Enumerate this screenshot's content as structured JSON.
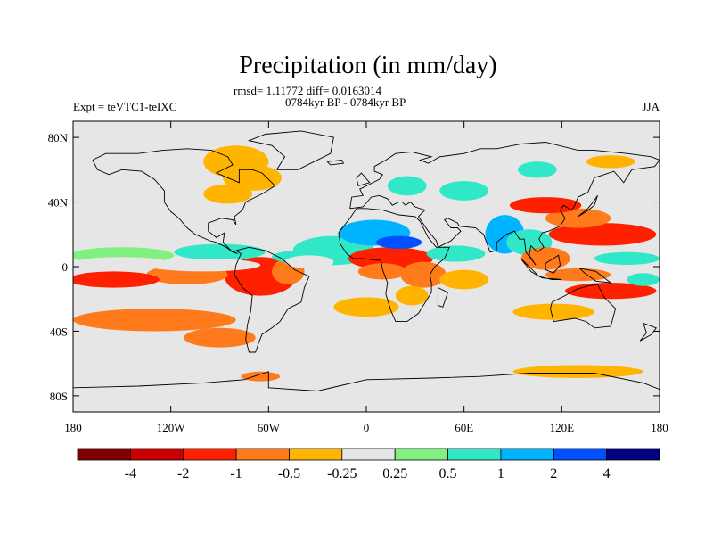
{
  "chart_data": {
    "type": "heatmap",
    "title": "Precipitation (in mm/day)",
    "subtitle_stats": "rmsd= 1.11772 diff= 0.0163014",
    "subtitle_period": "0784kyr BP - 0784kyr BP",
    "left_label": "Expt = teVTC1-teIXC",
    "right_label": "JJA",
    "x_ticks": [
      {
        "value": -180,
        "label": "180"
      },
      {
        "value": -120,
        "label": "120W"
      },
      {
        "value": -60,
        "label": "60W"
      },
      {
        "value": 0,
        "label": "0"
      },
      {
        "value": 60,
        "label": "60E"
      },
      {
        "value": 120,
        "label": "120E"
      },
      {
        "value": 180,
        "label": "180"
      }
    ],
    "y_ticks": [
      {
        "value": 80,
        "label": "80N"
      },
      {
        "value": 40,
        "label": "40N"
      },
      {
        "value": 0,
        "label": "0"
      },
      {
        "value": -40,
        "label": "40S"
      },
      {
        "value": -80,
        "label": "80S"
      }
    ],
    "xlim": [
      -180,
      180
    ],
    "ylim": [
      -90,
      90
    ],
    "colorbar": {
      "colors": [
        "#800000",
        "#c80000",
        "#ff2000",
        "#ff7a1a",
        "#ffb400",
        "#e6e6e6",
        "#80f080",
        "#30e8c8",
        "#00b4ff",
        "#0050ff",
        "#000080"
      ],
      "labels": [
        "-4",
        "-2",
        "-1",
        "-0.5",
        "-0.25",
        "0.25",
        "0.5",
        "1",
        "2",
        "4"
      ]
    },
    "anomaly_regions": [
      {
        "lon": -150,
        "lat": 7,
        "rx": 32,
        "ry": 5,
        "level": 2
      },
      {
        "lon": -90,
        "lat": 9,
        "rx": 28,
        "ry": 5,
        "level": 3
      },
      {
        "lon": -40,
        "lat": 6,
        "rx": 18,
        "ry": 4,
        "level": 3
      },
      {
        "lon": -150,
        "lat": 2,
        "rx": 30,
        "ry": 4,
        "level": 8
      },
      {
        "lon": -100,
        "lat": 1,
        "rx": 35,
        "ry": 4,
        "level": 9
      },
      {
        "lon": -35,
        "lat": 3,
        "rx": 15,
        "ry": 4,
        "level": 8
      },
      {
        "lon": -155,
        "lat": -8,
        "rx": 28,
        "ry": 5,
        "level": -3
      },
      {
        "lon": -110,
        "lat": -5,
        "rx": 25,
        "ry": 6,
        "level": -2
      },
      {
        "lon": -65,
        "lat": -6,
        "rx": 22,
        "ry": 12,
        "level": -3
      },
      {
        "lon": -48,
        "lat": -3,
        "rx": 10,
        "ry": 8,
        "level": -2
      },
      {
        "lon": -130,
        "lat": -33,
        "rx": 50,
        "ry": 7,
        "level": -2
      },
      {
        "lon": -90,
        "lat": -44,
        "rx": 22,
        "ry": 6,
        "level": -2
      },
      {
        "lon": -20,
        "lat": 10,
        "rx": 25,
        "ry": 9,
        "level": 3
      },
      {
        "lon": 5,
        "lat": 21,
        "rx": 22,
        "ry": 8,
        "level": 4
      },
      {
        "lon": 20,
        "lat": 15,
        "rx": 14,
        "ry": 4,
        "level": 5
      },
      {
        "lon": 15,
        "lat": 5,
        "rx": 26,
        "ry": 7,
        "level": -3
      },
      {
        "lon": 10,
        "lat": -3,
        "rx": 15,
        "ry": 5,
        "level": -2
      },
      {
        "lon": 35,
        "lat": -5,
        "rx": 14,
        "ry": 8,
        "level": -2
      },
      {
        "lon": 28,
        "lat": -18,
        "rx": 10,
        "ry": 6,
        "level": -1
      },
      {
        "lon": 60,
        "lat": -8,
        "rx": 15,
        "ry": 6,
        "level": -1
      },
      {
        "lon": 0,
        "lat": -25,
        "rx": 20,
        "ry": 6,
        "level": -1
      },
      {
        "lon": 55,
        "lat": 8,
        "rx": 18,
        "ry": 5,
        "level": 3
      },
      {
        "lon": 85,
        "lat": 20,
        "rx": 12,
        "ry": 12,
        "level": 4
      },
      {
        "lon": 100,
        "lat": 15,
        "rx": 14,
        "ry": 8,
        "level": 3
      },
      {
        "lon": 110,
        "lat": 38,
        "rx": 22,
        "ry": 5,
        "level": -3
      },
      {
        "lon": 130,
        "lat": 30,
        "rx": 20,
        "ry": 6,
        "level": -2
      },
      {
        "lon": 145,
        "lat": 20,
        "rx": 33,
        "ry": 7,
        "level": -3
      },
      {
        "lon": 110,
        "lat": 5,
        "rx": 15,
        "ry": 7,
        "level": -2
      },
      {
        "lon": 130,
        "lat": -5,
        "rx": 20,
        "ry": 4,
        "level": -2
      },
      {
        "lon": 160,
        "lat": 5,
        "rx": 20,
        "ry": 4,
        "level": 3
      },
      {
        "lon": 170,
        "lat": -8,
        "rx": 10,
        "ry": 4,
        "level": 3
      },
      {
        "lon": 150,
        "lat": -15,
        "rx": 28,
        "ry": 5,
        "level": -3
      },
      {
        "lon": 115,
        "lat": -28,
        "rx": 25,
        "ry": 5,
        "level": -1
      },
      {
        "lon": 130,
        "lat": -65,
        "rx": 40,
        "ry": 4,
        "level": -1
      },
      {
        "lon": -65,
        "lat": -68,
        "rx": 12,
        "ry": 3,
        "level": -2
      },
      {
        "lon": -85,
        "lat": 45,
        "rx": 15,
        "ry": 6,
        "level": -1
      },
      {
        "lon": -70,
        "lat": 55,
        "rx": 18,
        "ry": 8,
        "level": -1
      },
      {
        "lon": -80,
        "lat": 65,
        "rx": 20,
        "ry": 10,
        "level": -1
      },
      {
        "lon": 25,
        "lat": 50,
        "rx": 12,
        "ry": 6,
        "level": 3
      },
      {
        "lon": 60,
        "lat": 47,
        "rx": 15,
        "ry": 6,
        "level": 3
      },
      {
        "lon": 105,
        "lat": 60,
        "rx": 12,
        "ry": 5,
        "level": 3
      },
      {
        "lon": 150,
        "lat": 65,
        "rx": 15,
        "ry": 4,
        "level": -1
      }
    ]
  }
}
